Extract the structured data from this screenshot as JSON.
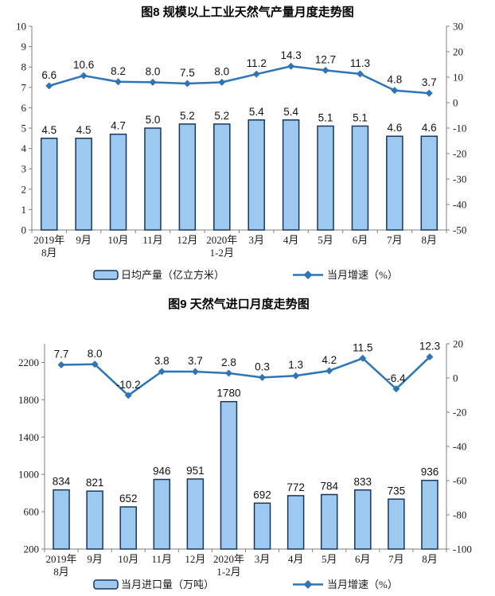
{
  "colors": {
    "bar_fill": "#9DC9F0",
    "bar_stroke": "#17375E",
    "line": "#2E75B6",
    "axis": "#7f7f7f",
    "text": "#1a1a1a"
  },
  "chart_data": [
    {
      "type": "bar+line",
      "title": "图8 规模以上工业天然气产量月度走势图",
      "categories": [
        "2019年\n8月",
        "9月",
        "10月",
        "11月",
        "12月",
        "2020年\n1-2月",
        "3月",
        "4月",
        "5月",
        "6月",
        "7月",
        "8月"
      ],
      "series": [
        {
          "name": "日均产量（亿立方米）",
          "type": "bar",
          "axis": "left",
          "values": [
            4.5,
            4.5,
            4.7,
            5.0,
            5.2,
            5.2,
            5.4,
            5.4,
            5.1,
            5.1,
            4.6,
            4.6
          ],
          "labels": [
            "4.5",
            "4.5",
            "4.7",
            "5.0",
            "5.2",
            "5.2",
            "5.4",
            "5.4",
            "5.1",
            "5.1",
            "4.6",
            "4.6"
          ]
        },
        {
          "name": "当月增速（%）",
          "type": "line",
          "axis": "right",
          "values": [
            6.6,
            10.6,
            8.2,
            8.0,
            7.5,
            8.0,
            11.2,
            14.3,
            12.7,
            11.3,
            4.8,
            3.7
          ],
          "labels": [
            "6.6",
            "10.6",
            "8.2",
            "8.0",
            "7.5",
            "8.0",
            "11.2",
            "14.3",
            "12.7",
            "11.3",
            "4.8",
            "3.7"
          ]
        }
      ],
      "left_axis": {
        "min": 0,
        "max": 10,
        "ticks": [
          0,
          1,
          2,
          3,
          4,
          5,
          6,
          7,
          8,
          9,
          10
        ]
      },
      "right_axis": {
        "min": -50,
        "max": 30,
        "ticks": [
          -50,
          -40,
          -30,
          -20,
          -10,
          0,
          10,
          20,
          30
        ]
      },
      "legend_position": "bottom",
      "grid": false
    },
    {
      "type": "bar+line",
      "title": "图9 天然气进口月度走势图",
      "categories": [
        "2019年\n8月",
        "9月",
        "10月",
        "11月",
        "12月",
        "2020年\n1-2月",
        "3月",
        "4月",
        "5月",
        "6月",
        "7月",
        "8月"
      ],
      "series": [
        {
          "name": "当月进口量（万吨）",
          "type": "bar",
          "axis": "left",
          "values": [
            834,
            821,
            652,
            946,
            951,
            1780,
            692,
            772,
            784,
            833,
            735,
            936
          ],
          "labels": [
            "834",
            "821",
            "652",
            "946",
            "951",
            "1780",
            "692",
            "772",
            "784",
            "833",
            "735",
            "936"
          ]
        },
        {
          "name": "当月增速（%）",
          "type": "line",
          "axis": "right",
          "values": [
            7.7,
            8.0,
            -10.2,
            3.8,
            3.7,
            2.8,
            0.3,
            1.3,
            4.2,
            11.5,
            -6.4,
            12.3
          ],
          "labels": [
            "7.7",
            "8.0",
            "-10.2",
            "3.8",
            "3.7",
            "2.8",
            "0.3",
            "1.3",
            "4.2",
            "11.5",
            "-6.4",
            "12.3"
          ]
        }
      ],
      "left_axis": {
        "min": 200,
        "max": 2400,
        "ticks": [
          200,
          600,
          1000,
          1400,
          1800,
          2200
        ]
      },
      "right_axis": {
        "min": -100,
        "max": 20,
        "ticks": [
          -100,
          -80,
          -60,
          -40,
          -20,
          0,
          20
        ]
      },
      "legend_position": "bottom",
      "grid": false
    }
  ]
}
